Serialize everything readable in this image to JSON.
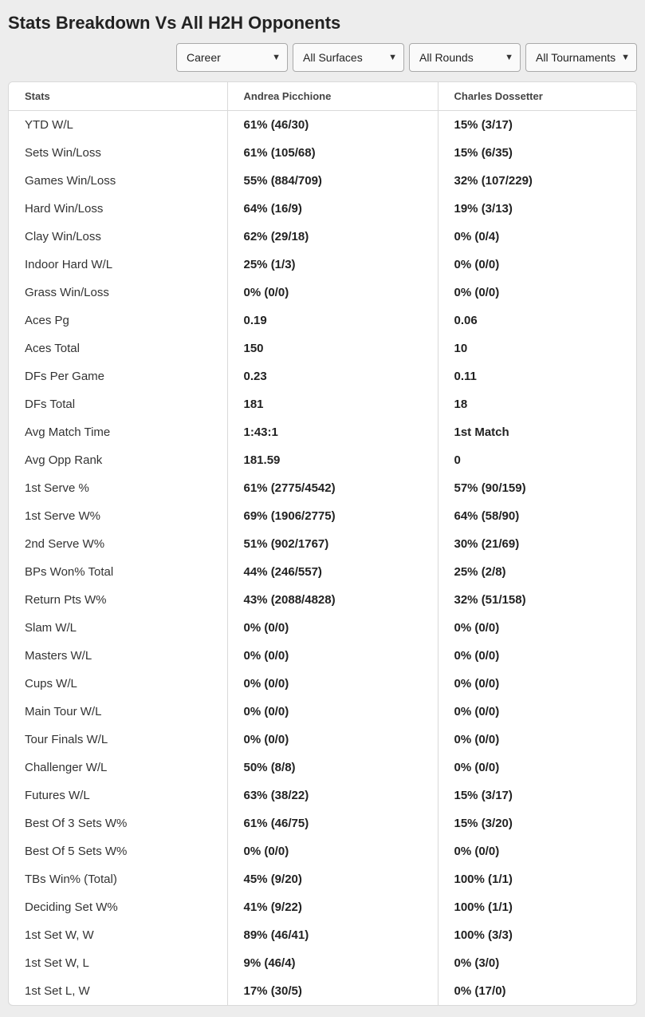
{
  "title": "Stats Breakdown Vs All H2H Opponents",
  "filters": {
    "period": "Career",
    "surface": "All Surfaces",
    "round": "All Rounds",
    "tournament": "All Tournaments"
  },
  "table": {
    "headers": {
      "stats": "Stats",
      "p1": "Andrea Picchione",
      "p2": "Charles Dossetter"
    },
    "rows": [
      {
        "stat": "YTD W/L",
        "p1": "61% (46/30)",
        "p2": "15% (3/17)"
      },
      {
        "stat": "Sets Win/Loss",
        "p1": "61% (105/68)",
        "p2": "15% (6/35)"
      },
      {
        "stat": "Games Win/Loss",
        "p1": "55% (884/709)",
        "p2": "32% (107/229)"
      },
      {
        "stat": "Hard Win/Loss",
        "p1": "64% (16/9)",
        "p2": "19% (3/13)"
      },
      {
        "stat": "Clay Win/Loss",
        "p1": "62% (29/18)",
        "p2": "0% (0/4)"
      },
      {
        "stat": "Indoor Hard W/L",
        "p1": "25% (1/3)",
        "p2": "0% (0/0)"
      },
      {
        "stat": "Grass Win/Loss",
        "p1": "0% (0/0)",
        "p2": "0% (0/0)"
      },
      {
        "stat": "Aces Pg",
        "p1": "0.19",
        "p2": "0.06"
      },
      {
        "stat": "Aces Total",
        "p1": "150",
        "p2": "10"
      },
      {
        "stat": "DFs Per Game",
        "p1": "0.23",
        "p2": "0.11"
      },
      {
        "stat": "DFs Total",
        "p1": "181",
        "p2": "18"
      },
      {
        "stat": "Avg Match Time",
        "p1": "1:43:1",
        "p2": "1st Match"
      },
      {
        "stat": "Avg Opp Rank",
        "p1": "181.59",
        "p2": "0"
      },
      {
        "stat": "1st Serve %",
        "p1": "61% (2775/4542)",
        "p2": "57% (90/159)"
      },
      {
        "stat": "1st Serve W%",
        "p1": "69% (1906/2775)",
        "p2": "64% (58/90)"
      },
      {
        "stat": "2nd Serve W%",
        "p1": "51% (902/1767)",
        "p2": "30% (21/69)"
      },
      {
        "stat": "BPs Won% Total",
        "p1": "44% (246/557)",
        "p2": "25% (2/8)"
      },
      {
        "stat": "Return Pts W%",
        "p1": "43% (2088/4828)",
        "p2": "32% (51/158)"
      },
      {
        "stat": "Slam W/L",
        "p1": "0% (0/0)",
        "p2": "0% (0/0)"
      },
      {
        "stat": "Masters W/L",
        "p1": "0% (0/0)",
        "p2": "0% (0/0)"
      },
      {
        "stat": "Cups W/L",
        "p1": "0% (0/0)",
        "p2": "0% (0/0)"
      },
      {
        "stat": "Main Tour W/L",
        "p1": "0% (0/0)",
        "p2": "0% (0/0)"
      },
      {
        "stat": "Tour Finals W/L",
        "p1": "0% (0/0)",
        "p2": "0% (0/0)"
      },
      {
        "stat": "Challenger W/L",
        "p1": "50% (8/8)",
        "p2": "0% (0/0)"
      },
      {
        "stat": "Futures W/L",
        "p1": "63% (38/22)",
        "p2": "15% (3/17)"
      },
      {
        "stat": "Best Of 3 Sets W%",
        "p1": "61% (46/75)",
        "p2": "15% (3/20)"
      },
      {
        "stat": "Best Of 5 Sets W%",
        "p1": "0% (0/0)",
        "p2": "0% (0/0)"
      },
      {
        "stat": "TBs Win% (Total)",
        "p1": "45% (9/20)",
        "p2": "100% (1/1)"
      },
      {
        "stat": "Deciding Set W%",
        "p1": "41% (9/22)",
        "p2": "100% (1/1)"
      },
      {
        "stat": "1st Set W, W",
        "p1": "89% (46/41)",
        "p2": "100% (3/3)"
      },
      {
        "stat": "1st Set W, L",
        "p1": "9% (46/4)",
        "p2": "0% (3/0)"
      },
      {
        "stat": "1st Set L, W",
        "p1": "17% (30/5)",
        "p2": "0% (17/0)"
      }
    ]
  },
  "style": {
    "page_bg": "#ededed",
    "card_bg": "#ffffff",
    "border_color": "#d9d9d9",
    "text_color": "#222222",
    "header_text_color": "#444444",
    "select_bg": "#fafafa",
    "select_border": "#aaaaaa",
    "title_fontsize": 22,
    "body_fontsize": 15,
    "header_fontsize": 13
  }
}
